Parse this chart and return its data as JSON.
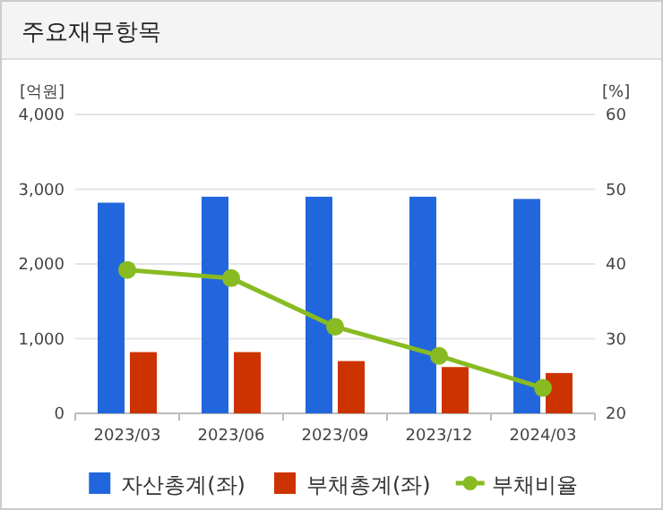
{
  "chart_data": {
    "type": "bar",
    "title": "주요재무항목",
    "ylabel": "[억원]",
    "y2label": "[%]",
    "categories": [
      "2023/03",
      "2023/06",
      "2023/09",
      "2023/12",
      "2024/03"
    ],
    "series": [
      {
        "name": "자산총계(좌)",
        "color": "#2266dd",
        "values": [
          2820,
          2900,
          2900,
          2900,
          2870
        ]
      },
      {
        "name": "부채총계(좌)",
        "color": "#cc3300",
        "values": [
          820,
          820,
          700,
          620,
          540
        ]
      },
      {
        "name": "부채비율",
        "type": "line",
        "axis": "y2",
        "marker": "circle",
        "color": "#88bb22",
        "values": [
          39.2,
          38.1,
          31.6,
          27.7,
          23.4
        ]
      }
    ],
    "ylim": [
      0,
      4000
    ],
    "yticks": [
      {
        "value": 0,
        "label": "0"
      },
      {
        "value": 1000,
        "label": "1,000"
      },
      {
        "value": 2000,
        "label": "2,000"
      },
      {
        "value": 3000,
        "label": "3,000"
      },
      {
        "value": 4000,
        "label": "4,000"
      }
    ],
    "y2lim": [
      20,
      60
    ],
    "y2ticks": [
      20,
      30,
      40,
      50,
      60
    ],
    "grid": "y",
    "legend": "bottom"
  }
}
